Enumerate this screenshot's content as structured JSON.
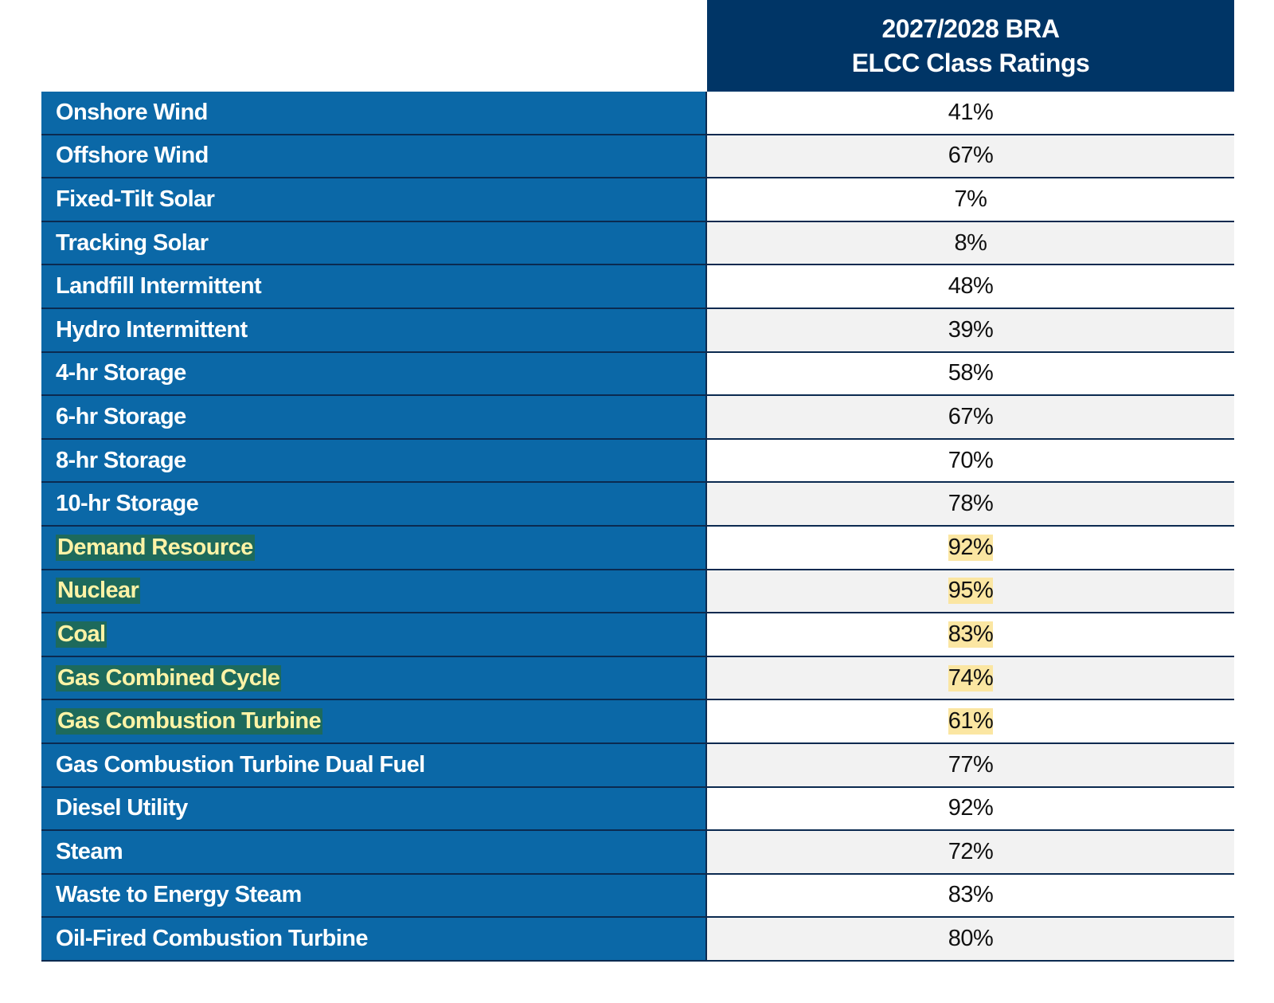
{
  "header": {
    "title_lines": [
      "2027/2028 BRA",
      "ELCC Class Ratings"
    ]
  },
  "table": {
    "highlight_color": "#fbe6a2",
    "rows": [
      {
        "label": "Onshore Wind",
        "value": "41%",
        "highlight": false
      },
      {
        "label": "Offshore Wind",
        "value": "67%",
        "highlight": false
      },
      {
        "label": "Fixed-Tilt Solar",
        "value": "7%",
        "highlight": false
      },
      {
        "label": "Tracking Solar",
        "value": "8%",
        "highlight": false
      },
      {
        "label": "Landfill Intermittent",
        "value": "48%",
        "highlight": false
      },
      {
        "label": "Hydro Intermittent",
        "value": "39%",
        "highlight": false
      },
      {
        "label": "4-hr Storage",
        "value": "58%",
        "highlight": false
      },
      {
        "label": "6-hr Storage",
        "value": "67%",
        "highlight": false
      },
      {
        "label": "8-hr Storage",
        "value": "70%",
        "highlight": false
      },
      {
        "label": "10-hr Storage",
        "value": "78%",
        "highlight": false
      },
      {
        "label": "Demand Resource",
        "value": "92%",
        "highlight": true
      },
      {
        "label": "Nuclear",
        "value": "95%",
        "highlight": true
      },
      {
        "label": "Coal",
        "value": "83%",
        "highlight": true
      },
      {
        "label": "Gas Combined Cycle",
        "value": "74%",
        "highlight": true
      },
      {
        "label": "Gas Combustion Turbine",
        "value": "61%",
        "highlight": true
      },
      {
        "label": "Gas Combustion Turbine Dual Fuel",
        "value": "77%",
        "highlight": false
      },
      {
        "label": "Diesel Utility",
        "value": "92%",
        "highlight": false
      },
      {
        "label": "Steam",
        "value": "72%",
        "highlight": false
      },
      {
        "label": "Waste to Energy Steam",
        "value": "83%",
        "highlight": false
      },
      {
        "label": "Oil-Fired Combustion Turbine",
        "value": "80%",
        "highlight": false
      }
    ]
  }
}
